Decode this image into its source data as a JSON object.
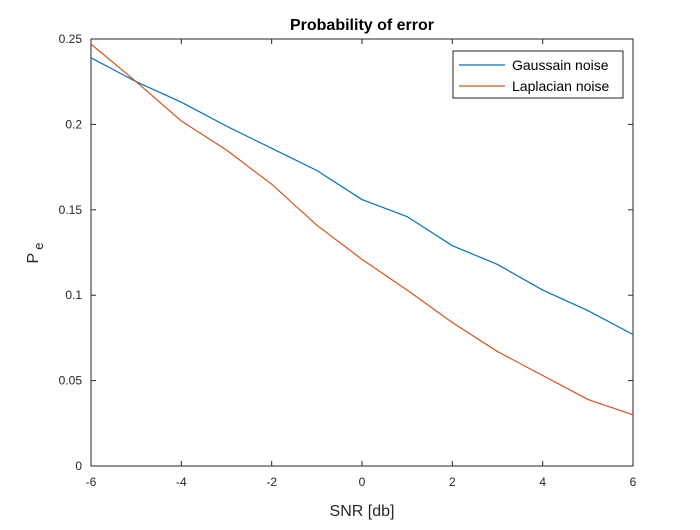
{
  "figure": {
    "background": "#ffffff"
  },
  "chart_data": {
    "type": "line",
    "title": "Probability of error",
    "xlabel": "SNR [db]",
    "ylabel": {
      "base": "P",
      "subscript": "e"
    },
    "xlim": [
      -6,
      6
    ],
    "ylim": [
      0,
      0.25
    ],
    "xticks": [
      "-6",
      "-4",
      "-2",
      "0",
      "2",
      "4",
      "6"
    ],
    "yticks": [
      "0",
      "0.05",
      "0.1",
      "0.15",
      "0.2",
      "0.25"
    ],
    "grid": false,
    "legend_position": "top-right",
    "x": [
      -6,
      -5,
      -4,
      -3,
      -2,
      -1,
      0,
      1,
      2,
      3,
      4,
      5,
      6
    ],
    "series": [
      {
        "name": "Gaussain noise",
        "color": "#0072BD",
        "values": [
          0.239,
          0.225,
          0.213,
          0.199,
          0.186,
          0.173,
          0.156,
          0.146,
          0.129,
          0.118,
          0.103,
          0.091,
          0.077
        ]
      },
      {
        "name": "Laplacian noise",
        "color": "#D95319",
        "values": [
          0.247,
          0.225,
          0.202,
          0.185,
          0.165,
          0.141,
          0.121,
          0.103,
          0.084,
          0.067,
          0.053,
          0.039,
          0.03
        ]
      }
    ]
  }
}
